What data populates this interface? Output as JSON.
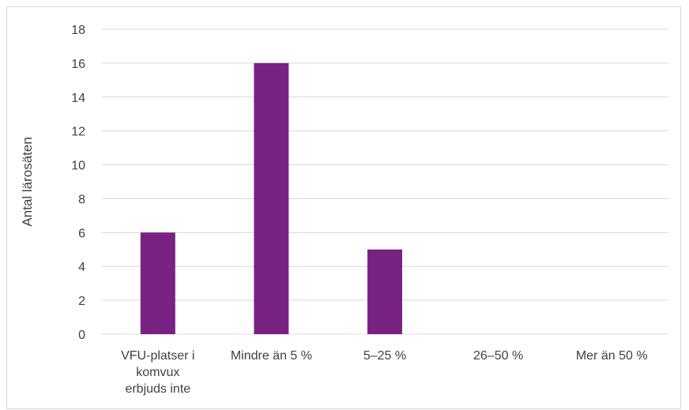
{
  "chart_data": {
    "type": "bar",
    "categories": [
      [
        "VFU-platser i",
        "komvux",
        "erbjuds inte"
      ],
      [
        "Mindre än 5 %"
      ],
      [
        "5–25 %"
      ],
      [
        "26–50 %"
      ],
      [
        "Mer än 50 %"
      ]
    ],
    "values": [
      6,
      16,
      5,
      0,
      0
    ],
    "ylabel": "Antal lärosäten",
    "ylim": [
      0,
      18
    ],
    "yticks": [
      0,
      2,
      4,
      6,
      8,
      10,
      12,
      14,
      16,
      18
    ],
    "grid": true,
    "legend": "none",
    "colors": {
      "bar": "#782283",
      "grid": "#d9d9d9",
      "text": "#404040"
    }
  }
}
